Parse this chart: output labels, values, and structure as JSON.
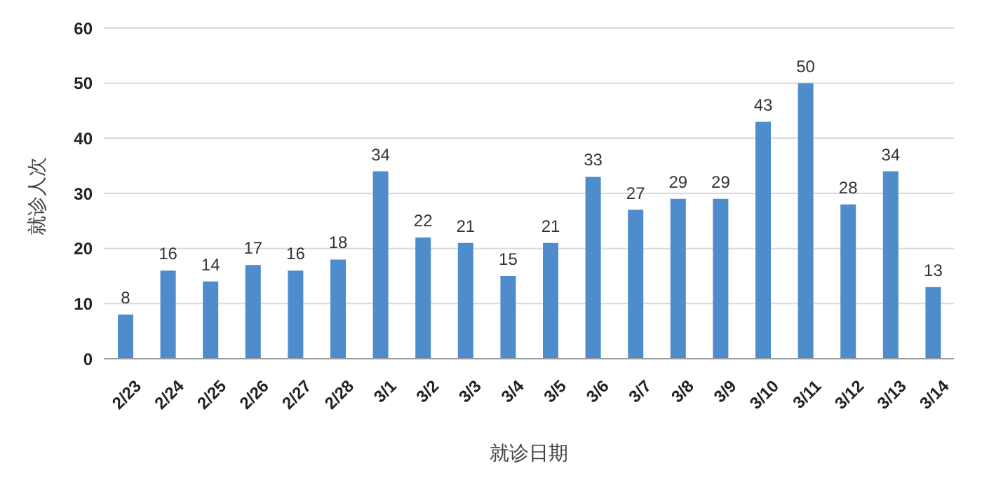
{
  "chart_data": {
    "type": "bar",
    "xlabel": "就诊日期",
    "ylabel": "就诊人次",
    "categories": [
      "2/23",
      "2/24",
      "2/25",
      "2/26",
      "2/27",
      "2/28",
      "3/1",
      "3/2",
      "3/3",
      "3/4",
      "3/5",
      "3/6",
      "3/7",
      "3/8",
      "3/9",
      "3/10",
      "3/11",
      "3/12",
      "3/13",
      "3/14"
    ],
    "values": [
      8,
      16,
      14,
      17,
      16,
      18,
      34,
      22,
      21,
      15,
      21,
      33,
      27,
      29,
      29,
      43,
      50,
      28,
      34,
      13
    ],
    "color": "#4e8ccc",
    "ylim": [
      0,
      60
    ],
    "yticks": [
      0,
      10,
      20,
      30,
      40,
      50,
      60
    ],
    "grid": "y",
    "data_labels": true
  }
}
